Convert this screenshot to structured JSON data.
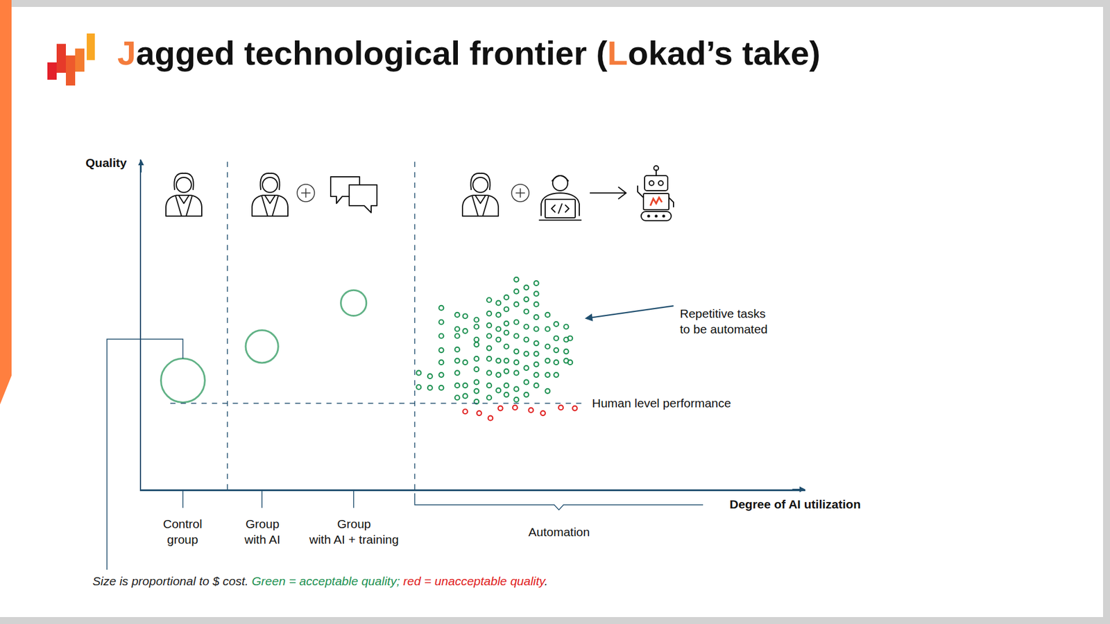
{
  "chart_data": {
    "type": "scatter",
    "title": "Jagged technological frontier (Lokad’s take)",
    "x_label": "Degree of AI utilization",
    "y_label": "Quality",
    "xlim": [
      0,
      100
    ],
    "ylim": [
      0,
      100
    ],
    "tick_labels": false,
    "grid": false,
    "groups": {
      "x": [
        6.3,
        18.2,
        32.0
      ],
      "y": [
        33.0,
        43.3,
        56.5
      ],
      "size": [
        31,
        23,
        18
      ],
      "color": "#1e9152",
      "labels": [
        [
          "Control",
          "group"
        ],
        [
          "Group",
          "with AI"
        ],
        [
          "Group",
          "with AI + training"
        ]
      ]
    },
    "dividers": [
      13.0,
      41.2
    ],
    "threshold": {
      "value": 26.1,
      "x": [
        4.4,
        67.0
      ],
      "label": "Human level performance"
    },
    "automation": {
      "label": "Automation",
      "x": [
        41.2,
        84.6
      ]
    },
    "annotations": [
      {
        "text": [
          "Repetitive tasks",
          "to be automated"
        ]
      }
    ],
    "series": [
      {
        "color": "#1e9152",
        "x": [
          41.8,
          41.8,
          43.5,
          43.5,
          45.2,
          45.2,
          45.2,
          45.2,
          45.2,
          45.2,
          45.2,
          47.6,
          47.6,
          47.6,
          47.6,
          47.6,
          47.6,
          47.6,
          47.6,
          48.8,
          48.8,
          48.8,
          48.8,
          48.8,
          50.5,
          50.5,
          50.5,
          50.5,
          50.5,
          50.5,
          50.5,
          50.5,
          50.5,
          52.4,
          52.4,
          52.4,
          52.4,
          52.4,
          52.4,
          52.4,
          52.4,
          52.4,
          53.8,
          53.8,
          53.8,
          53.8,
          53.8,
          53.8,
          53.8,
          55.0,
          55.0,
          55.0,
          55.0,
          55.0,
          55.0,
          55.0,
          55.0,
          55.0,
          56.5,
          56.5,
          56.5,
          56.5,
          56.5,
          56.5,
          56.5,
          56.5,
          56.5,
          56.5,
          58.0,
          58.0,
          58.0,
          58.0,
          58.0,
          58.0,
          58.0,
          58.0,
          58.0,
          59.5,
          59.5,
          59.5,
          59.5,
          59.5,
          59.5,
          59.5,
          59.5,
          59.5,
          59.5,
          61.2,
          61.2,
          61.2,
          61.2,
          61.2,
          61.2,
          62.5,
          62.5,
          62.5,
          62.5,
          62.5,
          64.0,
          64.0,
          64.0,
          64.0,
          64.6,
          64.6
        ],
        "y": [
          35.3,
          31.0,
          34.3,
          30.8,
          55.0,
          50.7,
          46.5,
          42.2,
          38.5,
          34.7,
          30.8,
          52.9,
          48.6,
          46.5,
          42.4,
          39.0,
          35.3,
          31.5,
          27.8,
          52.5,
          48.0,
          38.5,
          31.5,
          28.3,
          51.4,
          49.3,
          45.4,
          43.9,
          39.6,
          36.4,
          32.5,
          29.8,
          26.6,
          57.4,
          53.3,
          49.7,
          46.5,
          42.8,
          39.6,
          35.3,
          31.5,
          27.8,
          56.5,
          52.9,
          48.6,
          45.4,
          39.0,
          34.7,
          30.0,
          58.2,
          54.6,
          50.3,
          47.5,
          43.3,
          39.0,
          35.8,
          31.5,
          28.7,
          63.6,
          60.0,
          56.1,
          50.7,
          46.5,
          41.8,
          38.5,
          35.3,
          30.4,
          27.2,
          61.2,
          57.6,
          53.9,
          49.3,
          45.4,
          41.1,
          36.8,
          32.5,
          28.7,
          62.5,
          59.3,
          56.1,
          52.2,
          48.6,
          44.3,
          41.1,
          37.9,
          34.7,
          31.5,
          52.9,
          48.6,
          43.3,
          39.0,
          34.7,
          29.8,
          50.1,
          45.8,
          42.2,
          38.5,
          34.7,
          49.3,
          45.4,
          41.8,
          39.0,
          45.8,
          38.5
        ]
      },
      {
        "color": "#e02020",
        "x": [
          48.8,
          50.9,
          52.6,
          54.1,
          56.3,
          58.7,
          60.5,
          63.2,
          65.3
        ],
        "y": [
          23.6,
          23.1,
          21.6,
          24.6,
          24.8,
          24.0,
          23.1,
          24.8,
          24.6
        ]
      }
    ],
    "caption": [
      {
        "text": "Size is proportional to $ cost. ",
        "color": "#222222"
      },
      {
        "text": "Green = acceptable quality; ",
        "color": "#1e9152"
      },
      {
        "text": "red = unacceptable quality",
        "color": "#e02020"
      },
      {
        "text": ".",
        "color": "#222222"
      }
    ]
  }
}
